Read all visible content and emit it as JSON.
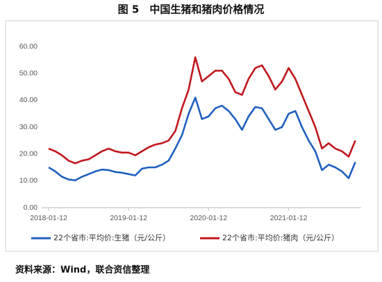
{
  "chart_data": {
    "type": "line",
    "title": "图 5　中国生猪和猪肉价格情况",
    "source": "资料来源：Wind，联合资信整理",
    "categories": [
      "2018-01-12",
      null,
      null,
      null,
      null,
      null,
      null,
      null,
      null,
      null,
      null,
      null,
      "2019-01-12",
      null,
      null,
      null,
      null,
      null,
      null,
      null,
      null,
      null,
      null,
      null,
      "2020-01-12",
      null,
      null,
      null,
      null,
      null,
      null,
      null,
      null,
      null,
      null,
      null,
      "2021-01-12",
      null,
      null,
      null,
      null,
      null,
      null,
      null,
      null,
      null,
      null
    ],
    "series": [
      {
        "name": "22个省市:平均价:生猪（元/公斤）",
        "color": "#1f5fbf",
        "values": [
          15,
          13.5,
          11.5,
          10.5,
          10.2,
          11.5,
          12.5,
          13.5,
          14.2,
          14,
          13.3,
          13,
          12.5,
          12,
          14.5,
          15,
          15,
          16,
          17.5,
          22,
          27,
          35,
          41,
          33,
          34,
          37,
          38,
          36,
          33,
          29,
          34,
          37.5,
          37,
          33,
          29,
          30,
          35,
          36,
          30,
          25,
          21,
          14,
          16,
          15,
          13.5,
          11,
          17
        ]
      },
      {
        "name": "22个省市:平均价:猪肉（元/公斤）",
        "color": "#c0161c",
        "values": [
          22,
          21,
          19.5,
          17.5,
          16.5,
          17.5,
          18,
          19.5,
          21,
          22,
          21,
          20.5,
          20.5,
          19.5,
          21,
          22.5,
          23.5,
          24,
          25,
          28.5,
          37,
          44,
          56,
          47,
          49,
          51,
          51,
          48,
          43,
          42,
          48,
          52,
          53,
          49,
          44,
          47,
          52,
          48,
          42,
          36,
          30,
          22,
          24,
          22,
          21,
          19,
          25
        ]
      }
    ],
    "ylim": [
      0,
      60
    ],
    "yticks": [
      {
        "value": 0,
        "label": "0.00"
      },
      {
        "value": 10,
        "label": "10.00"
      },
      {
        "value": 20,
        "label": "20.00"
      },
      {
        "value": 30,
        "label": "30.00"
      },
      {
        "value": 40,
        "label": "40.00"
      },
      {
        "value": 50,
        "label": "50.00"
      },
      {
        "value": 60,
        "label": "60.00"
      }
    ],
    "grid": false,
    "legend": "bottom"
  }
}
